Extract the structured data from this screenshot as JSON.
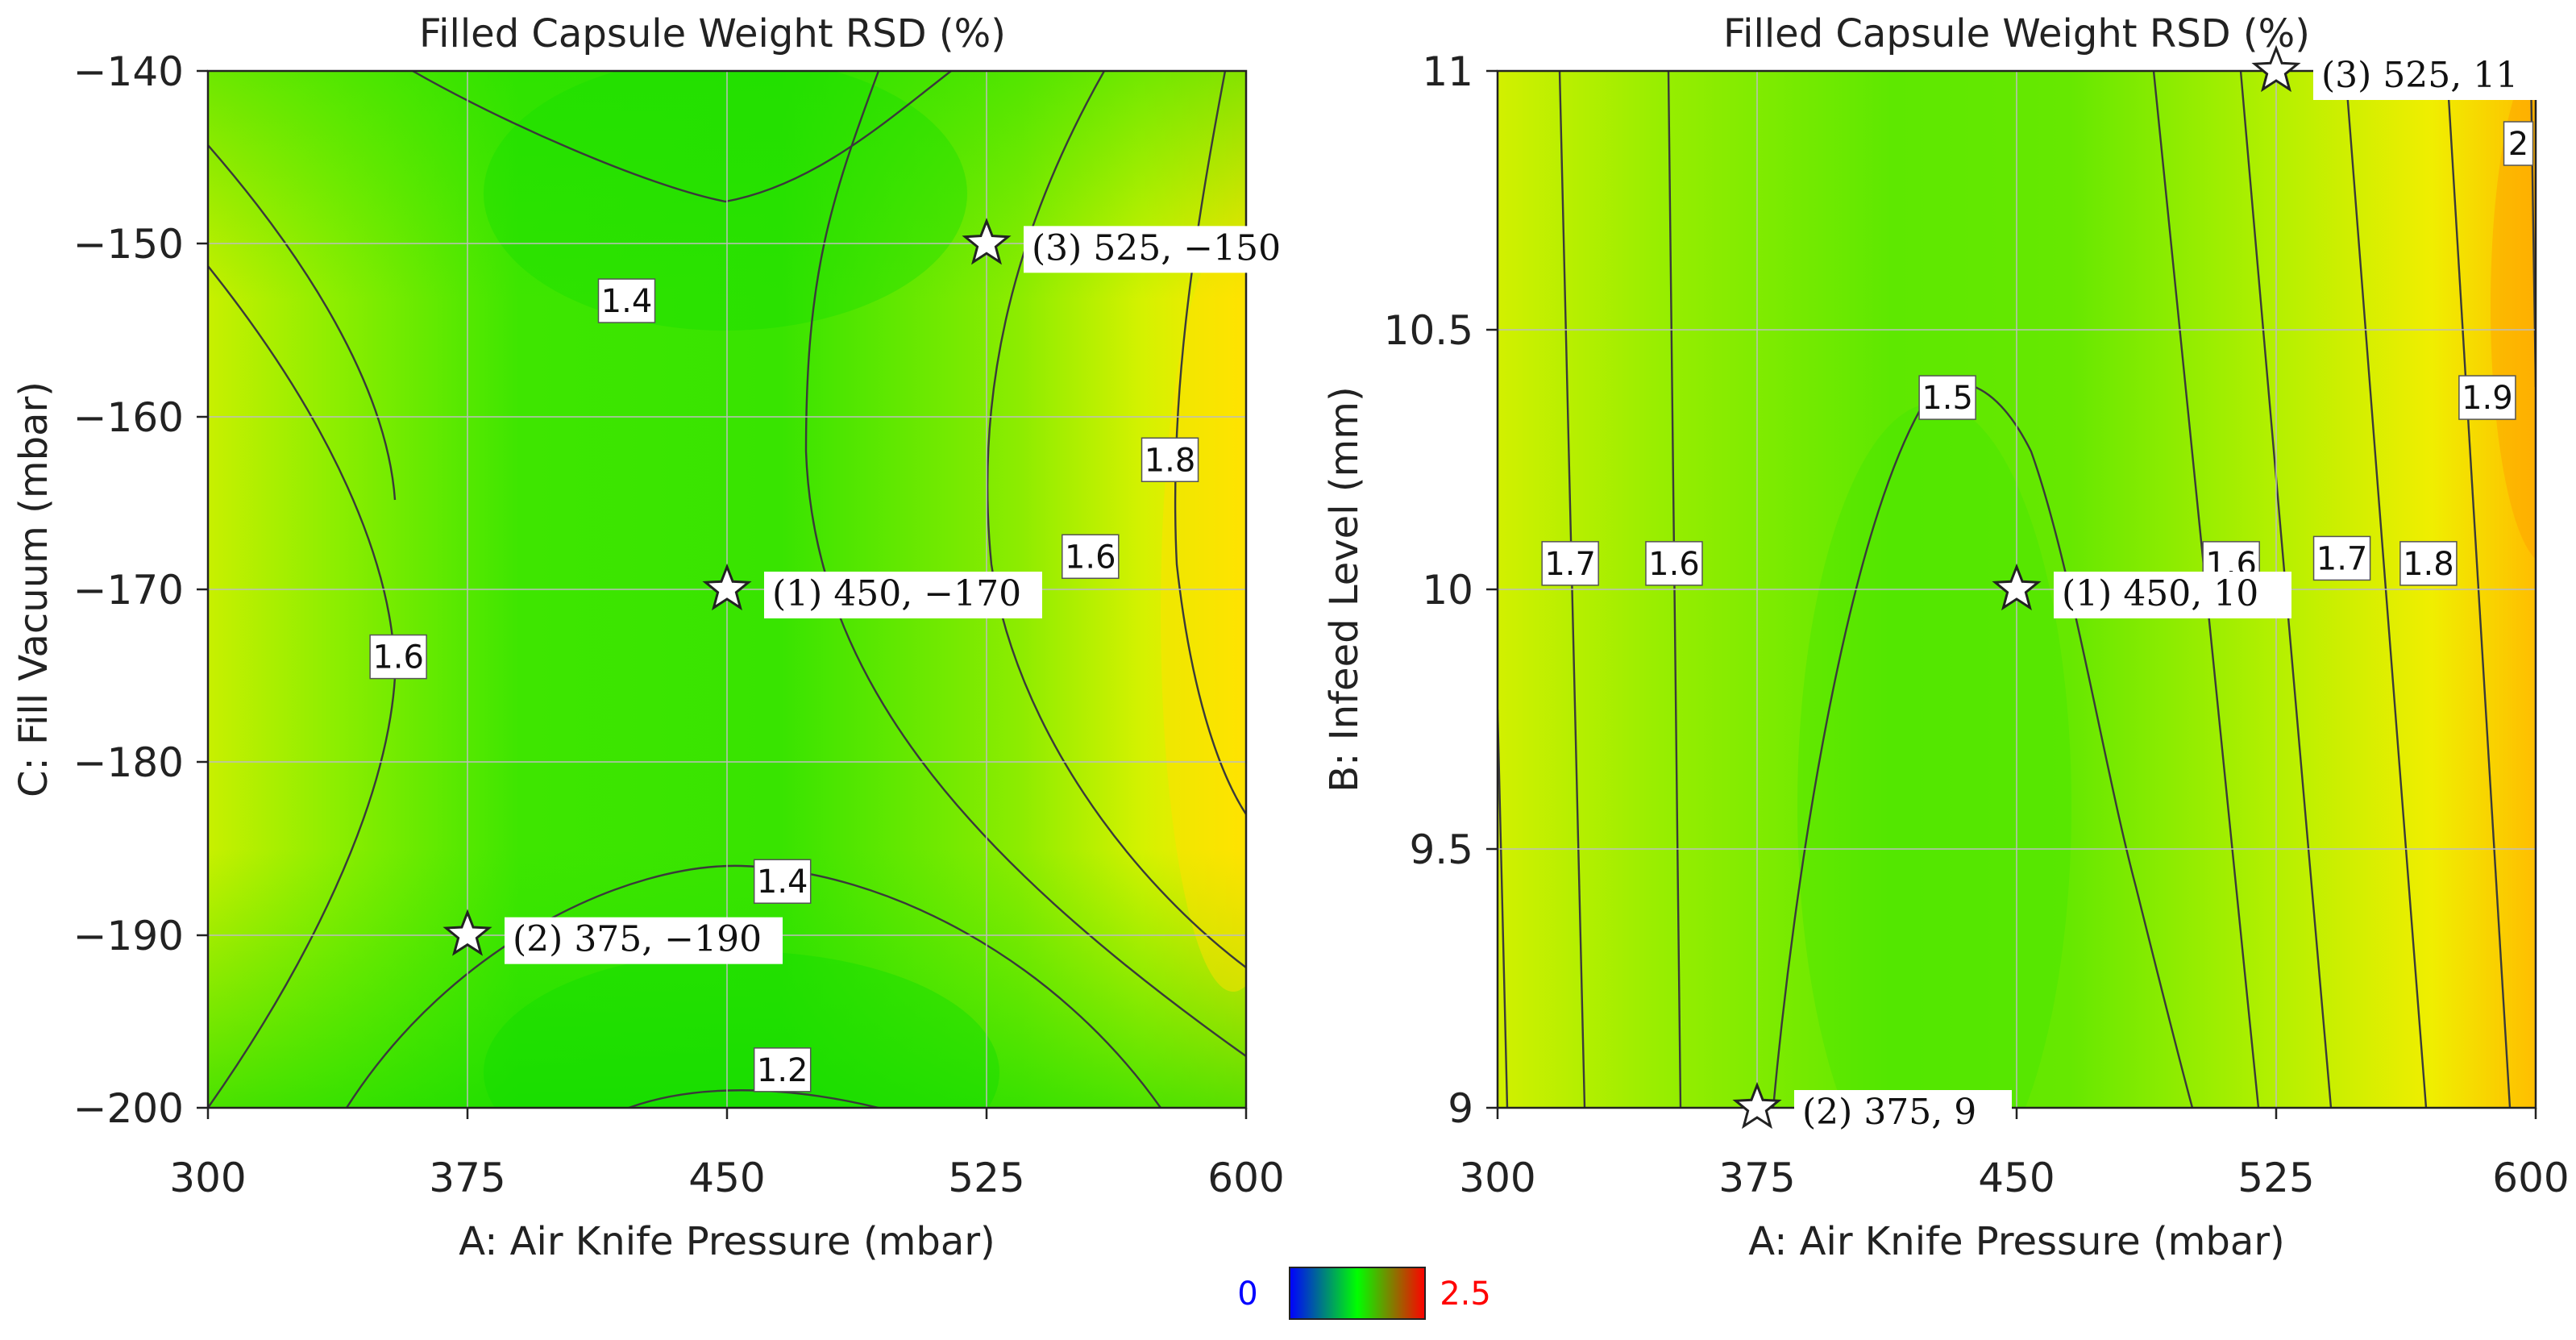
{
  "chart_data": [
    {
      "type": "contour",
      "title": "Filled Capsule Weight RSD (%)",
      "xlabel": "A: Air Knife Pressure (mbar)",
      "ylabel": "C: Fill Vacuum (mbar)",
      "xlim": [
        300,
        600
      ],
      "ylim": [
        -200,
        -140
      ],
      "x_ticks": [
        "300",
        "375",
        "450",
        "525",
        "600"
      ],
      "y_ticks": [
        "-200",
        "-190",
        "-180",
        "-170",
        "-160",
        "-150",
        "-140"
      ],
      "y_tick_labels": [
        "−200",
        "−190",
        "−180",
        "−170",
        "−160",
        "−150",
        "−140"
      ],
      "grid": true,
      "contour_labels": [
        {
          "text": "1.4",
          "x": 421,
          "y": -153.3
        },
        {
          "text": "1.4",
          "x": 466,
          "y": -186.9
        },
        {
          "text": "1.2",
          "x": 466,
          "y": -197.8
        },
        {
          "text": "1.6",
          "x": 355,
          "y": -173.9
        },
        {
          "text": "1.6",
          "x": 555,
          "y": -168.1
        },
        {
          "text": "1.8",
          "x": 578,
          "y": -162.5
        }
      ],
      "design_points": [
        {
          "x": 450,
          "y": -170,
          "label": "(1) 450, −170"
        },
        {
          "x": 375,
          "y": -190,
          "label": "(2) 375, −190"
        },
        {
          "x": 525,
          "y": -150,
          "label": "(3) 525, −150"
        }
      ]
    },
    {
      "type": "contour",
      "title": "Filled Capsule Weight RSD (%)",
      "xlabel": "A: Air Knife Pressure (mbar)",
      "ylabel": "B: Infeed Level (mm)",
      "xlim": [
        300,
        600
      ],
      "ylim": [
        9,
        11
      ],
      "x_ticks": [
        "300",
        "375",
        "450",
        "525",
        "600"
      ],
      "y_ticks": [
        "9",
        "9.5",
        "10",
        "10.5",
        "11"
      ],
      "y_tick_labels": [
        "9",
        "9.5",
        "10",
        "10.5",
        "11"
      ],
      "grid": true,
      "contour_labels": [
        {
          "text": "1.7",
          "x": 321,
          "y": 10.05
        },
        {
          "text": "1.6",
          "x": 351,
          "y": 10.05
        },
        {
          "text": "1.5",
          "x": 430,
          "y": 10.37
        },
        {
          "text": "1.6",
          "x": 512,
          "y": 10.05
        },
        {
          "text": "1.7",
          "x": 544,
          "y": 10.06
        },
        {
          "text": "1.8",
          "x": 569,
          "y": 10.05
        },
        {
          "text": "1.9",
          "x": 586,
          "y": 10.37
        },
        {
          "text": "2",
          "x": 595,
          "y": 10.86
        }
      ],
      "design_points": [
        {
          "x": 450,
          "y": 10,
          "label": "(1) 450, 10"
        },
        {
          "x": 375,
          "y": 9,
          "label": "(2) 375, 9"
        },
        {
          "x": 525,
          "y": 11,
          "label": "(3) 525, 11"
        }
      ]
    }
  ],
  "colorbar": {
    "min_label": "0",
    "max_label": "2.5",
    "min_color": "#0000ff",
    "max_color": "#ff0000"
  },
  "colors": {
    "gradient_low": "#0000ff",
    "gradient_mid": "#00e000",
    "gradient_high": "#ff0000"
  }
}
